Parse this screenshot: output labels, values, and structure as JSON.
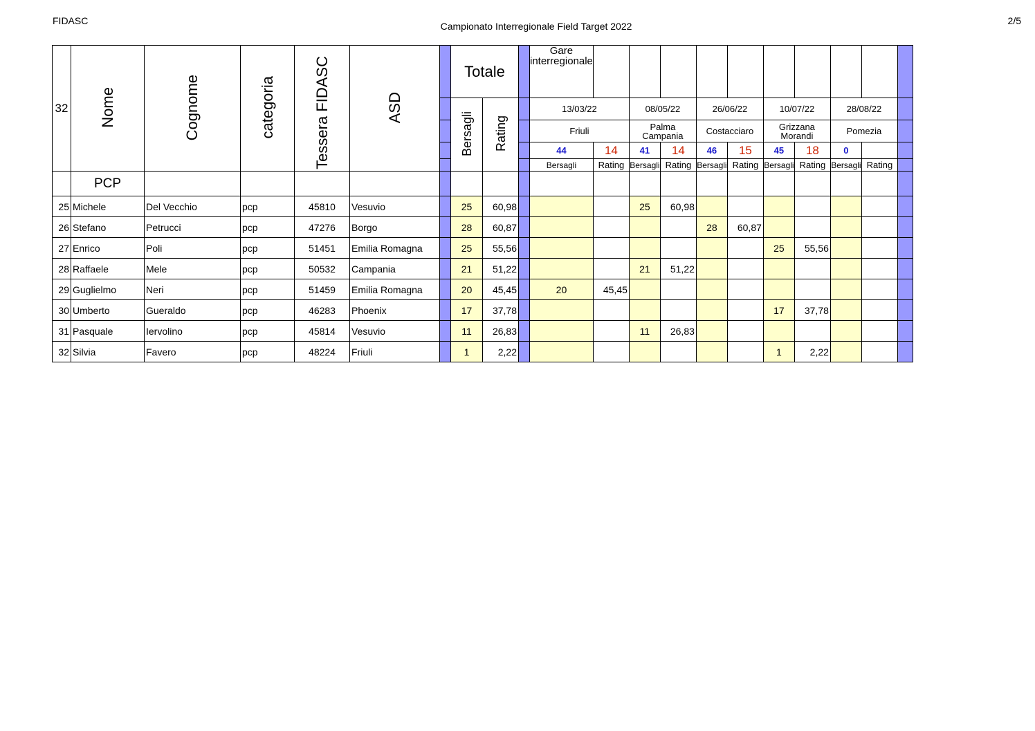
{
  "page": {
    "left_header": "FIDASC",
    "title": "Campionato Interregionale Field Target 2022",
    "page_number": "2/5"
  },
  "table": {
    "count": "32",
    "col_nome": "Nome",
    "col_cognome": "Cognome",
    "col_categoria": "categoria",
    "col_tessera": "Tessera FIDASC",
    "col_asd": "ASD",
    "totale": "Totale",
    "totale_bersagli": "Bersagli",
    "totale_rating": "Rating",
    "gare_label": "Gare interregionale",
    "section_label": "PCP",
    "sub_bersagli": "Bersagli",
    "sub_rating": "Rating",
    "events": [
      {
        "date": "13/03/22",
        "place": "Friuli",
        "targets": "44",
        "rating": "14"
      },
      {
        "date": "08/05/22",
        "place": "Palma Campania",
        "targets": "41",
        "rating": "14"
      },
      {
        "date": "26/06/22",
        "place": "Costacciaro",
        "targets": "46",
        "rating": "15"
      },
      {
        "date": "10/07/22",
        "place": "Grizzana Morandi",
        "targets": "45",
        "rating": "18"
      },
      {
        "date": "28/08/22",
        "place": "Pomezia",
        "targets": "0",
        "rating": ""
      }
    ],
    "rows": [
      {
        "pos": "25",
        "nome": "Michele",
        "cognome": "Del Vecchio",
        "cat": "pcp",
        "tessera": "45810",
        "asd": "Vesuvio",
        "bers": "25",
        "rating": "60,98",
        "ev": [
          [
            "",
            ""
          ],
          [
            "25",
            "60,98"
          ],
          [
            "",
            ""
          ],
          [
            "",
            ""
          ],
          [
            "",
            ""
          ]
        ]
      },
      {
        "pos": "26",
        "nome": "Stefano",
        "cognome": "Petrucci",
        "cat": "pcp",
        "tessera": "47276",
        "asd": "Borgo",
        "bers": "28",
        "rating": "60,87",
        "ev": [
          [
            "",
            ""
          ],
          [
            "",
            ""
          ],
          [
            "28",
            "60,87"
          ],
          [
            "",
            ""
          ],
          [
            "",
            ""
          ]
        ]
      },
      {
        "pos": "27",
        "nome": "Enrico",
        "cognome": "Poli",
        "cat": "pcp",
        "tessera": "51451",
        "asd": "Emilia Romagna",
        "bers": "25",
        "rating": "55,56",
        "ev": [
          [
            "",
            ""
          ],
          [
            "",
            ""
          ],
          [
            "",
            ""
          ],
          [
            "25",
            "55,56"
          ],
          [
            "",
            ""
          ]
        ]
      },
      {
        "pos": "28",
        "nome": "Raffaele",
        "cognome": "Mele",
        "cat": "pcp",
        "tessera": "50532",
        "asd": "Campania",
        "bers": "21",
        "rating": "51,22",
        "ev": [
          [
            "",
            ""
          ],
          [
            "21",
            "51,22"
          ],
          [
            "",
            ""
          ],
          [
            "",
            ""
          ],
          [
            "",
            ""
          ]
        ]
      },
      {
        "pos": "29",
        "nome": "Guglielmo",
        "cognome": "Neri",
        "cat": "pcp",
        "tessera": "51459",
        "asd": "Emilia Romagna",
        "bers": "20",
        "rating": "45,45",
        "ev": [
          [
            "20",
            "45,45"
          ],
          [
            "",
            ""
          ],
          [
            "",
            ""
          ],
          [
            "",
            ""
          ],
          [
            "",
            ""
          ]
        ]
      },
      {
        "pos": "30",
        "nome": "Umberto",
        "cognome": "Gueraldo",
        "cat": "pcp",
        "tessera": "46283",
        "asd": "Phoenix",
        "bers": "17",
        "rating": "37,78",
        "ev": [
          [
            "",
            ""
          ],
          [
            "",
            ""
          ],
          [
            "",
            ""
          ],
          [
            "17",
            "37,78"
          ],
          [
            "",
            ""
          ]
        ]
      },
      {
        "pos": "31",
        "nome": "Pasquale",
        "cognome": "Iervolino",
        "cat": "pcp",
        "tessera": "45814",
        "asd": "Vesuvio",
        "bers": "11",
        "rating": "26,83",
        "ev": [
          [
            "",
            ""
          ],
          [
            "11",
            "26,83"
          ],
          [
            "",
            ""
          ],
          [
            "",
            ""
          ],
          [
            "",
            ""
          ]
        ]
      },
      {
        "pos": "32",
        "nome": "Silvia",
        "cognome": "Favero",
        "cat": "pcp",
        "tessera": "48224",
        "asd": "Friuli",
        "bers": "1",
        "rating": "2,22",
        "ev": [
          [
            "",
            ""
          ],
          [
            "",
            ""
          ],
          [
            "",
            ""
          ],
          [
            "1",
            "2,22"
          ],
          [
            "",
            ""
          ]
        ]
      }
    ]
  }
}
